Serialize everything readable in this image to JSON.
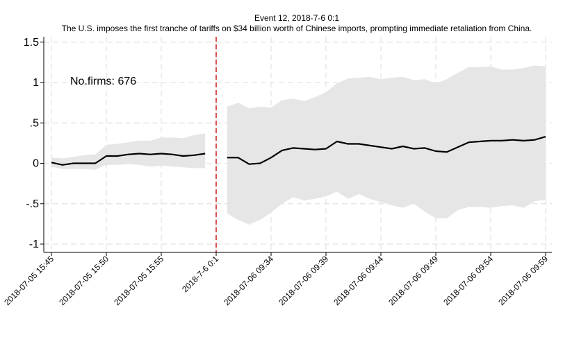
{
  "chart_data": {
    "type": "line",
    "title": "Event 12, 2018-7-6 0:1",
    "subtitle": "The U.S. imposes the first tranche of tariffs on $34 billion worth of Chinese imports, prompting immediate retaliation from China.",
    "annotation": "No.firms: 676",
    "xlabel": "",
    "ylabel": "",
    "ylim": [
      -1.05,
      1.6
    ],
    "y_ticks": [
      1.5,
      1,
      0.5,
      0,
      -0.5,
      -1
    ],
    "y_tick_labels": [
      "1.5",
      "1",
      ".5",
      "0",
      "-.5",
      "-1"
    ],
    "x_tick_labels": [
      {
        "x": 0,
        "label": "2018-07-05 15:45"
      },
      {
        "x": 5,
        "label": "2018-07-05 15:50"
      },
      {
        "x": 10,
        "label": "2018-07-05 15:55"
      },
      {
        "x": 15,
        "label": "2018-7-6 0:1"
      },
      {
        "x": 20,
        "label": "2018-07-06 09:34"
      },
      {
        "x": 25,
        "label": "2018-07-06 09:39"
      },
      {
        "x": 30,
        "label": "2018-07-06 09:44"
      },
      {
        "x": 35,
        "label": "2018-07-06 09:49"
      },
      {
        "x": 40,
        "label": "2018-07-06 09:54"
      },
      {
        "x": 45,
        "label": "2018-07-06 09:59"
      }
    ],
    "event_x": 15,
    "grid": true,
    "event_line_color": "#d62728",
    "line_color": "#000000",
    "band_color": "#e6e6e6",
    "segments": [
      {
        "x": [
          0,
          1,
          2,
          3,
          4,
          5,
          6,
          7,
          8,
          9,
          10,
          11,
          12,
          13,
          14
        ],
        "mean": [
          0.01,
          -0.02,
          0.0,
          0.0,
          0.0,
          0.09,
          0.09,
          0.11,
          0.12,
          0.11,
          0.12,
          0.11,
          0.09,
          0.1,
          0.12
        ],
        "lower": [
          -0.04,
          -0.07,
          -0.07,
          -0.07,
          -0.08,
          -0.02,
          -0.02,
          -0.01,
          -0.02,
          -0.04,
          -0.03,
          -0.04,
          -0.05,
          -0.06,
          -0.06
        ],
        "upper": [
          0.07,
          0.06,
          0.08,
          0.1,
          0.11,
          0.23,
          0.24,
          0.26,
          0.28,
          0.28,
          0.32,
          0.32,
          0.31,
          0.35,
          0.37
        ]
      },
      {
        "x": [
          16,
          17,
          18,
          19,
          20,
          21,
          22,
          23,
          24,
          25,
          26,
          27,
          28,
          29,
          30,
          31,
          32,
          33,
          34,
          35,
          36,
          37,
          38,
          39,
          40,
          41,
          42,
          43,
          44,
          45
        ],
        "mean": [
          0.07,
          0.07,
          -0.01,
          0.0,
          0.07,
          0.16,
          0.19,
          0.18,
          0.17,
          0.18,
          0.27,
          0.24,
          0.24,
          0.22,
          0.2,
          0.18,
          0.21,
          0.18,
          0.19,
          0.15,
          0.14,
          0.2,
          0.26,
          0.27,
          0.28,
          0.28,
          0.29,
          0.28,
          0.29,
          0.33
        ],
        "lower": [
          -0.62,
          -0.7,
          -0.76,
          -0.7,
          -0.61,
          -0.5,
          -0.42,
          -0.46,
          -0.44,
          -0.41,
          -0.35,
          -0.44,
          -0.38,
          -0.44,
          -0.48,
          -0.52,
          -0.55,
          -0.5,
          -0.6,
          -0.68,
          -0.68,
          -0.58,
          -0.54,
          -0.54,
          -0.55,
          -0.53,
          -0.52,
          -0.55,
          -0.47,
          -0.45
        ],
        "upper": [
          0.7,
          0.75,
          0.68,
          0.7,
          0.69,
          0.78,
          0.8,
          0.77,
          0.82,
          0.88,
          0.99,
          1.05,
          1.06,
          1.07,
          1.04,
          1.06,
          1.07,
          1.03,
          1.04,
          0.99,
          1.04,
          1.12,
          1.19,
          1.19,
          1.2,
          1.16,
          1.16,
          1.18,
          1.21,
          1.2
        ]
      }
    ]
  }
}
